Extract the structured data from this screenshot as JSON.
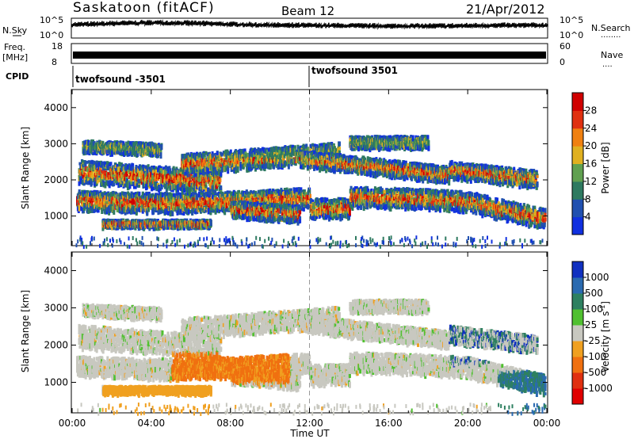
{
  "header": {
    "title": "Saskatoon (fitACF)",
    "beam": "Beam 12",
    "date": "21/Apr/2012"
  },
  "status_panels": {
    "nsky_label": "N.Sky",
    "nsky_ticks": [
      "10^5",
      "10^0"
    ],
    "nsearch_label": "N.Search",
    "nsearch_ticks": [
      "10^5",
      "10^0"
    ],
    "nsearch_key": "........",
    "freq_label": "Freq.",
    "freq_unit": "[MHz]",
    "freq_ticks": [
      "18",
      "8"
    ],
    "nave_label": "Nave",
    "nave_ticks": [
      "60",
      "0"
    ],
    "nave_key": "....",
    "cpid_label": "CPID",
    "cpid_segments": [
      "twofsound -3501",
      "twofsound 3501"
    ]
  },
  "chart_data": [
    {
      "type": "heatmap",
      "name": "power",
      "ylabel": "Slant Range [km]",
      "yticks": [
        1000,
        2000,
        3000,
        4000
      ],
      "ylim": [
        180,
        4500
      ],
      "xlim_hours": [
        0,
        24
      ],
      "colorbar_label": "Power [dB]",
      "colorbar_ticks": [
        4,
        8,
        12,
        16,
        20,
        24,
        28
      ],
      "colorbar_colors": [
        "#1030e0",
        "#2050b0",
        "#2e7a60",
        "#60a050",
        "#e0b020",
        "#f08010",
        "#e03010",
        "#d00000"
      ]
    },
    {
      "type": "heatmap",
      "name": "velocity",
      "ylabel": "Slant Range [km]",
      "yticks": [
        1000,
        2000,
        3000,
        4000
      ],
      "ylim": [
        180,
        4500
      ],
      "xlim_hours": [
        0,
        24
      ],
      "colorbar_label": "Velocity [m s",
      "colorbar_label_sup": "-1",
      "colorbar_label_end": "]",
      "colorbar_ticks": [
        "1000",
        "500",
        "100",
        "25",
        "-25",
        "-100",
        "-500",
        "-1000"
      ],
      "colorbar_colors": [
        "#1030c0",
        "#2a6ab0",
        "#2e8060",
        "#50c030",
        "#c8c8c0",
        "#f0a020",
        "#f07010",
        "#e03010",
        "#e00000"
      ]
    }
  ],
  "time_axis": {
    "ticks": [
      "00:00",
      "04:00",
      "08:00",
      "12:00",
      "16:00",
      "20:00",
      "00:00"
    ],
    "label": "Time UT"
  }
}
